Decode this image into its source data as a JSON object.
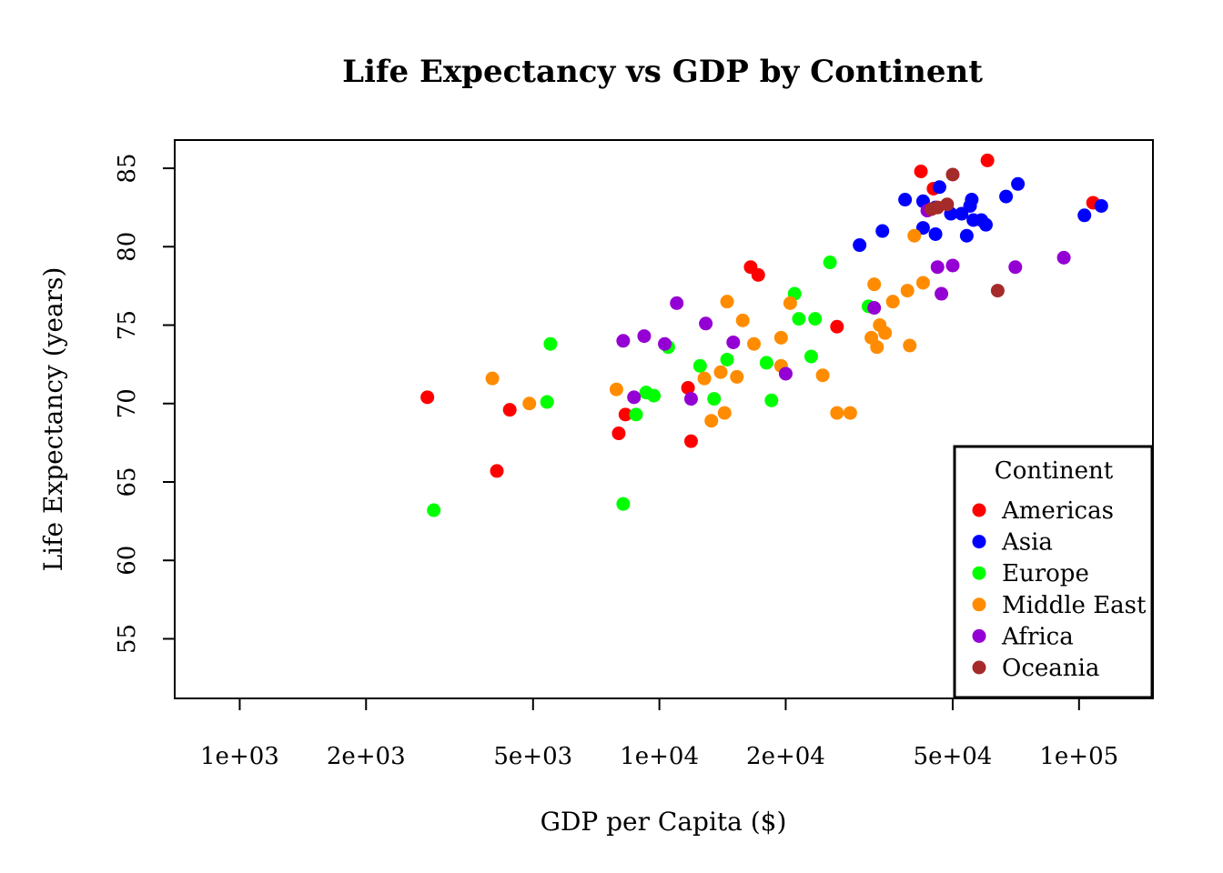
{
  "chart_data": {
    "type": "scatter",
    "title": "Life Expectancy vs GDP by Continent",
    "xlabel": "GDP per Capita ($)",
    "ylabel": "Life Expectancy (years)",
    "x_scale": "log",
    "xlim": [
      700,
      150000
    ],
    "ylim": [
      51.2,
      86.8
    ],
    "x_ticks": [
      1000,
      2000,
      5000,
      10000,
      20000,
      50000,
      100000
    ],
    "x_tick_labels": [
      "1e+03",
      "2e+03",
      "5e+03",
      "1e+04",
      "2e+04",
      "5e+04",
      "1e+05"
    ],
    "y_ticks": [
      55,
      60,
      65,
      70,
      75,
      80,
      85
    ],
    "y_tick_labels": [
      "55",
      "60",
      "65",
      "70",
      "75",
      "80",
      "85"
    ],
    "grid": false,
    "legend": {
      "title": "Continent",
      "position": "bottom-right",
      "entries": [
        "Americas",
        "Asia",
        "Europe",
        "Middle East",
        "Africa",
        "Oceania"
      ]
    },
    "series": [
      {
        "name": "Americas",
        "color": "#ff0000",
        "points": [
          [
            2800,
            70.4
          ],
          [
            4100,
            65.7
          ],
          [
            4400,
            69.6
          ],
          [
            8000,
            68.1
          ],
          [
            8300,
            69.3
          ],
          [
            11700,
            71.0
          ],
          [
            11900,
            67.6
          ],
          [
            16500,
            78.7
          ],
          [
            17200,
            78.2
          ],
          [
            26500,
            74.9
          ],
          [
            42000,
            84.8
          ],
          [
            45000,
            83.7
          ],
          [
            60500,
            85.5
          ],
          [
            108000,
            82.8
          ]
        ]
      },
      {
        "name": "Asia",
        "color": "#0000ff",
        "points": [
          [
            30000,
            80.1
          ],
          [
            34000,
            81.0
          ],
          [
            38500,
            83.0
          ],
          [
            42500,
            82.9
          ],
          [
            42500,
            81.2
          ],
          [
            46500,
            83.8
          ],
          [
            45500,
            82.5
          ],
          [
            45500,
            80.8
          ],
          [
            49500,
            82.1
          ],
          [
            52500,
            82.1
          ],
          [
            54000,
            80.7
          ],
          [
            55000,
            82.6
          ],
          [
            55500,
            83.0
          ],
          [
            56000,
            81.7
          ],
          [
            58500,
            81.7
          ],
          [
            60000,
            81.4
          ],
          [
            67000,
            83.2
          ],
          [
            71500,
            84.0
          ],
          [
            103000,
            82.0
          ],
          [
            113000,
            82.6
          ]
        ]
      },
      {
        "name": "Europe",
        "color": "#00ff00",
        "points": [
          [
            2900,
            63.2
          ],
          [
            5400,
            70.1
          ],
          [
            5500,
            73.8
          ],
          [
            8200,
            63.6
          ],
          [
            8800,
            69.3
          ],
          [
            9300,
            70.7
          ],
          [
            9700,
            70.5
          ],
          [
            10500,
            73.6
          ],
          [
            12500,
            72.4
          ],
          [
            13500,
            70.3
          ],
          [
            14500,
            72.8
          ],
          [
            18000,
            72.6
          ],
          [
            18500,
            70.2
          ],
          [
            21000,
            77.0
          ],
          [
            21500,
            75.4
          ],
          [
            23000,
            73.0
          ],
          [
            23500,
            75.4
          ],
          [
            25500,
            79.0
          ],
          [
            31500,
            76.2
          ]
        ]
      },
      {
        "name": "Middle East",
        "color": "#ff8c00",
        "points": [
          [
            4000,
            71.6
          ],
          [
            4900,
            70.0
          ],
          [
            7900,
            70.9
          ],
          [
            12800,
            71.6
          ],
          [
            13300,
            68.9
          ],
          [
            14000,
            72.0
          ],
          [
            14300,
            69.4
          ],
          [
            14500,
            76.5
          ],
          [
            15300,
            71.7
          ],
          [
            15800,
            75.3
          ],
          [
            16800,
            73.8
          ],
          [
            19500,
            74.2
          ],
          [
            19500,
            72.4
          ],
          [
            20500,
            76.4
          ],
          [
            24500,
            71.8
          ],
          [
            26500,
            69.4
          ],
          [
            28500,
            69.4
          ],
          [
            32000,
            74.2
          ],
          [
            32500,
            77.6
          ],
          [
            33000,
            73.6
          ],
          [
            33500,
            75.0
          ],
          [
            34500,
            74.5
          ],
          [
            36000,
            76.5
          ],
          [
            39000,
            77.2
          ],
          [
            39500,
            73.7
          ],
          [
            40500,
            80.7
          ],
          [
            42500,
            77.7
          ]
        ]
      },
      {
        "name": "Africa",
        "color": "#9400d3",
        "points": [
          [
            8200,
            74.0
          ],
          [
            8700,
            70.4
          ],
          [
            9200,
            74.3
          ],
          [
            10300,
            73.8
          ],
          [
            11000,
            76.4
          ],
          [
            11900,
            70.3
          ],
          [
            12900,
            75.1
          ],
          [
            15000,
            73.9
          ],
          [
            20000,
            71.9
          ],
          [
            32500,
            76.1
          ],
          [
            43500,
            82.3
          ],
          [
            46000,
            78.7
          ],
          [
            47000,
            77.0
          ],
          [
            50000,
            78.8
          ],
          [
            70500,
            78.7
          ],
          [
            92000,
            79.3
          ]
        ]
      },
      {
        "name": "Oceania",
        "color": "#a52a2a",
        "points": [
          [
            44500,
            82.4
          ],
          [
            46000,
            82.5
          ],
          [
            48500,
            82.7
          ],
          [
            50000,
            84.6
          ],
          [
            64000,
            77.2
          ]
        ]
      }
    ]
  }
}
